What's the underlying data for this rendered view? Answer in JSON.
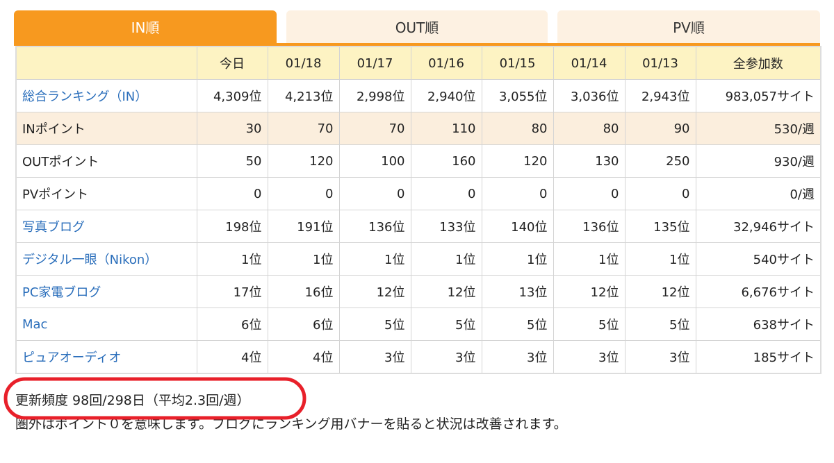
{
  "tabs": [
    "IN順",
    "OUT順",
    "PV順"
  ],
  "table": {
    "columns": [
      "今日",
      "01/18",
      "01/17",
      "01/16",
      "01/15",
      "01/14",
      "01/13",
      "全参加数"
    ],
    "rows": [
      {
        "label": "総合ランキング（IN）",
        "cells": [
          "4,309位",
          "4,213位",
          "2,998位",
          "2,940位",
          "3,055位",
          "3,036位",
          "2,943位",
          "983,057サイト"
        ]
      },
      {
        "label": "INポイント",
        "cells": [
          "30",
          "70",
          "70",
          "110",
          "80",
          "80",
          "90",
          "530/週"
        ]
      },
      {
        "label": "OUTポイント",
        "cells": [
          "50",
          "120",
          "100",
          "160",
          "120",
          "130",
          "250",
          "930/週"
        ]
      },
      {
        "label": "PVポイント",
        "cells": [
          "0",
          "0",
          "0",
          "0",
          "0",
          "0",
          "0",
          "0/週"
        ]
      },
      {
        "label": "写真ブログ",
        "cells": [
          "198位",
          "191位",
          "136位",
          "133位",
          "140位",
          "136位",
          "135位",
          "32,946サイト"
        ]
      },
      {
        "label": "デジタル一眼（Nikon）",
        "cells": [
          "1位",
          "1位",
          "1位",
          "1位",
          "1位",
          "1位",
          "1位",
          "540サイト"
        ]
      },
      {
        "label": "PC家電ブログ",
        "cells": [
          "17位",
          "16位",
          "12位",
          "12位",
          "13位",
          "12位",
          "12位",
          "6,676サイト"
        ]
      },
      {
        "label": "Mac",
        "cells": [
          "6位",
          "6位",
          "5位",
          "5位",
          "5位",
          "5位",
          "5位",
          "638サイト"
        ]
      },
      {
        "label": "ピュアオーディオ",
        "cells": [
          "4位",
          "4位",
          "3位",
          "3位",
          "3位",
          "3位",
          "3位",
          "185サイト"
        ]
      }
    ]
  },
  "notes": [
    "更新頻度 98回/298日（平均2.3回/週）",
    "圏外はポイント０を意味します。ブログにランキング用バナーを貼ると状況は改善されます。"
  ]
}
